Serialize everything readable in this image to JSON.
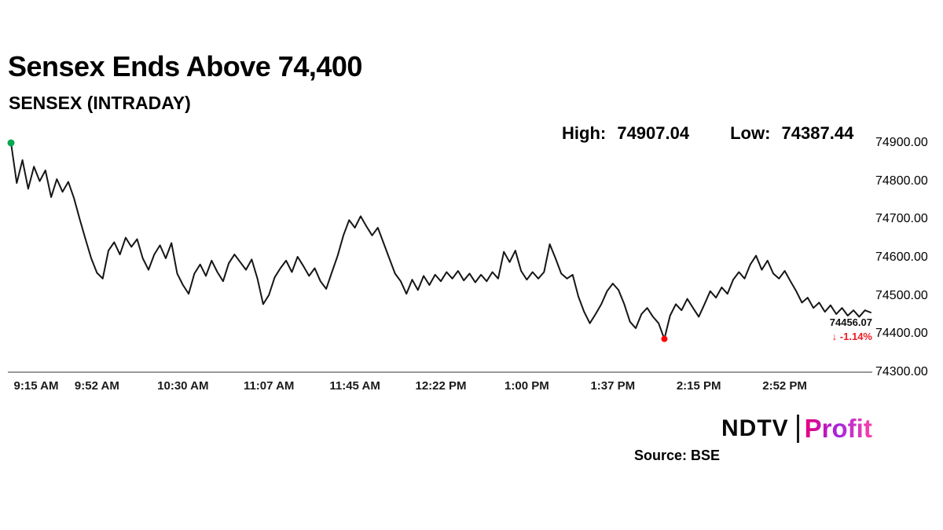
{
  "header": {
    "title": "Sensex Ends Above 74,400",
    "subtitle": "SENSEX (INTRADAY)",
    "high_label": "High:",
    "high_value": "74907.04",
    "low_label": "Low:",
    "low_value": "74387.44"
  },
  "chart_data": {
    "type": "line",
    "title": "SENSEX (INTRADAY)",
    "series_name": "SENSEX",
    "high": 74907.04,
    "low": 74387.44,
    "close": 74456.07,
    "change_pct": "-1.14%",
    "ylim": [
      74300,
      74900
    ],
    "total_minutes": 375,
    "sample_interval_minutes": 2.5,
    "x_ticks": [
      {
        "label": "9:15 AM",
        "minute": 0
      },
      {
        "label": "9:52 AM",
        "minute": 37.5
      },
      {
        "label": "10:30 AM",
        "minute": 75
      },
      {
        "label": "11:07 AM",
        "minute": 112.5
      },
      {
        "label": "11:45 AM",
        "minute": 150
      },
      {
        "label": "12:22 PM",
        "minute": 187.5
      },
      {
        "label": "1:00 PM",
        "minute": 225
      },
      {
        "label": "1:37 PM",
        "minute": 262.5
      },
      {
        "label": "2:15 PM",
        "minute": 300
      },
      {
        "label": "2:52 PM",
        "minute": 337.5
      }
    ],
    "y_ticks": [
      {
        "label": "74900.00",
        "value": 74900
      },
      {
        "label": "74800.00",
        "value": 74800
      },
      {
        "label": "74700.00",
        "value": 74700
      },
      {
        "label": "74600.00",
        "value": 74600
      },
      {
        "label": "74500.00",
        "value": 74500
      },
      {
        "label": "74400.00",
        "value": 74400
      },
      {
        "label": "74300.00",
        "value": 74300
      }
    ],
    "values": [
      74900,
      74795,
      74855,
      74780,
      74838,
      74800,
      74828,
      74758,
      74805,
      74772,
      74798,
      74755,
      74700,
      74648,
      74598,
      74560,
      74545,
      74618,
      74640,
      74608,
      74652,
      74628,
      74648,
      74598,
      74568,
      74608,
      74632,
      74598,
      74638,
      74558,
      74528,
      74505,
      74558,
      74582,
      74552,
      74592,
      74562,
      74538,
      74585,
      74608,
      74588,
      74568,
      74595,
      74545,
      74478,
      74502,
      74548,
      74572,
      74592,
      74562,
      74602,
      74578,
      74552,
      74572,
      74538,
      74518,
      74562,
      74605,
      74658,
      74698,
      74678,
      74708,
      74682,
      74658,
      74678,
      74638,
      74598,
      74558,
      74538,
      74505,
      74542,
      74515,
      74552,
      74528,
      74555,
      74538,
      74562,
      74545,
      74565,
      74540,
      74558,
      74535,
      74555,
      74538,
      74562,
      74545,
      74615,
      74588,
      74618,
      74565,
      74542,
      74562,
      74545,
      74562,
      74635,
      74598,
      74558,
      74545,
      74555,
      74498,
      74458,
      74428,
      74452,
      74478,
      74512,
      74532,
      74515,
      74478,
      74432,
      74415,
      74452,
      74468,
      74445,
      74428,
      74387,
      74448,
      74478,
      74462,
      74492,
      74468,
      74445,
      74478,
      74512,
      74495,
      74522,
      74505,
      74542,
      74562,
      74545,
      74582,
      74605,
      74568,
      74592,
      74558,
      74545,
      74565,
      74538,
      74512,
      74482,
      74495,
      74468,
      74482,
      74458,
      74475,
      74452,
      74468,
      74448,
      74462,
      74445,
      74462,
      74456.07
    ],
    "line_color": "#161616",
    "axis_color": "#333333",
    "start_marker_color": "#00a651",
    "low_marker_color": "#ff0000"
  },
  "annotation": {
    "last_price": "74456.07",
    "change_arrow": "↓",
    "change_text": "-1.14%",
    "change_color": "#ed1c24"
  },
  "footer": {
    "logo_ndtv": "NDTV",
    "logo_divider": "|",
    "logo_profit": "Profit",
    "profit_colors": [
      "#e6007e",
      "#a428e0",
      "#ff3fa6"
    ],
    "source": "Source: BSE"
  }
}
